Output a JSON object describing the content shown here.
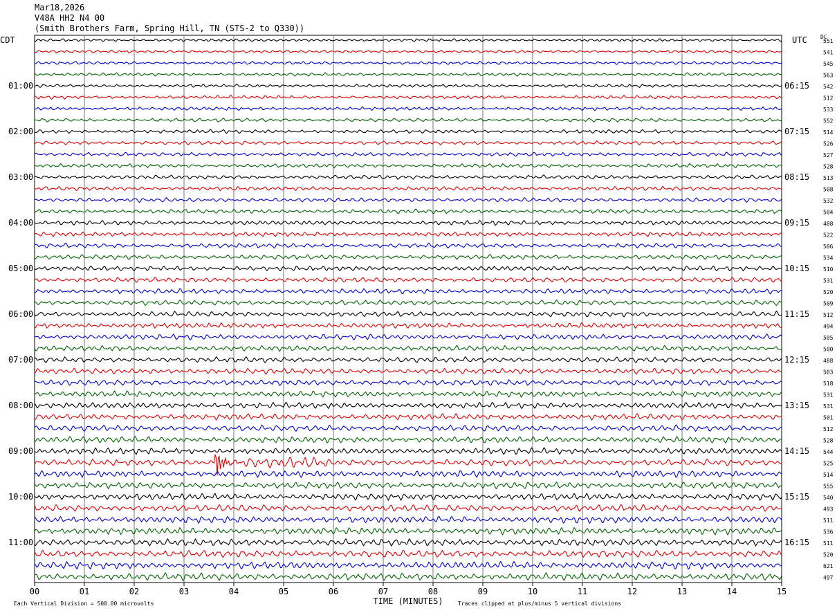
{
  "header": {
    "date": "Mar18,2026",
    "station": "V48A HH2 N4 00",
    "location": "(Smith Brothers Farm, Spring Hill, TN (STS-2 to Q330))"
  },
  "chart_data": {
    "type": "line",
    "title": "",
    "xlabel": "TIME (MINUTES)",
    "ylabel": "",
    "left_tz": "CDT",
    "right_tz": "UTC",
    "dc_label": "DC",
    "xlim": [
      0,
      15
    ],
    "x_ticks": [
      "00",
      "01",
      "02",
      "03",
      "04",
      "05",
      "06",
      "07",
      "08",
      "09",
      "10",
      "11",
      "12",
      "13",
      "14",
      "15"
    ],
    "left_hour_labels": [
      "01:00",
      "02:00",
      "03:00",
      "04:00",
      "05:00",
      "06:00",
      "07:00",
      "08:00",
      "09:00",
      "10:00",
      "11:00"
    ],
    "right_hour_labels": [
      "06:15",
      "07:15",
      "08:15",
      "09:15",
      "10:15",
      "11:15",
      "12:15",
      "13:15",
      "14:15",
      "15:15",
      "16:15"
    ],
    "trace_colors": [
      "#000000",
      "#dd0000",
      "#0000cc",
      "#006400"
    ],
    "dc_offsets": [
      551,
      541,
      545,
      563,
      542,
      512,
      533,
      552,
      514,
      526,
      527,
      528,
      513,
      508,
      532,
      504,
      488,
      522,
      506,
      534,
      510,
      531,
      520,
      509,
      512,
      494,
      505,
      500,
      488,
      503,
      518,
      531,
      531,
      501,
      512,
      528,
      544,
      525,
      514,
      555,
      540,
      493,
      511,
      536,
      511,
      520,
      621,
      497
    ],
    "event": {
      "trace_index": 37,
      "minute": 3.65,
      "note": "clipped signal"
    },
    "footer_left": "Each Vertical Division =  500.00 microvolts",
    "footer_right": "Traces clipped at plus/minus 5 vertical divisions"
  }
}
